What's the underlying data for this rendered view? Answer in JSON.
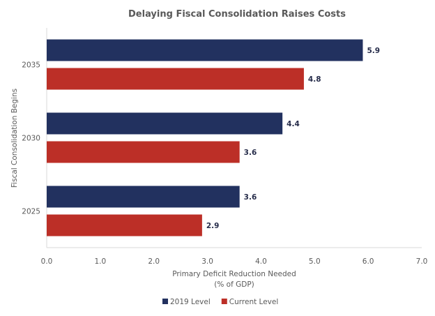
{
  "chart_data": {
    "type": "bar",
    "orientation": "horizontal",
    "title": "Delaying Fiscal Consolidation Raises Costs",
    "xlabel": "Primary Deficit Reduction Needed",
    "xlabel_line2": "(% of GDP)",
    "ylabel": "Fiscal Consolidation Begins",
    "categories": [
      "2035",
      "2030",
      "2025"
    ],
    "series": [
      {
        "name": "2019 Level",
        "color": "#22315f",
        "values": [
          5.9,
          4.4,
          3.6
        ],
        "labels": [
          "5.9",
          "4.4",
          "3.6"
        ]
      },
      {
        "name": "Current Level",
        "color": "#bc2f27",
        "values": [
          4.8,
          3.6,
          2.9
        ],
        "labels": [
          "4.8",
          "3.6",
          "2.9"
        ]
      }
    ],
    "xlim": [
      0,
      7
    ],
    "xticks": [
      "0.0",
      "1.0",
      "2.0",
      "3.0",
      "4.0",
      "5.0",
      "6.0",
      "7.0"
    ],
    "grid": false,
    "legend_position": "bottom-center"
  }
}
